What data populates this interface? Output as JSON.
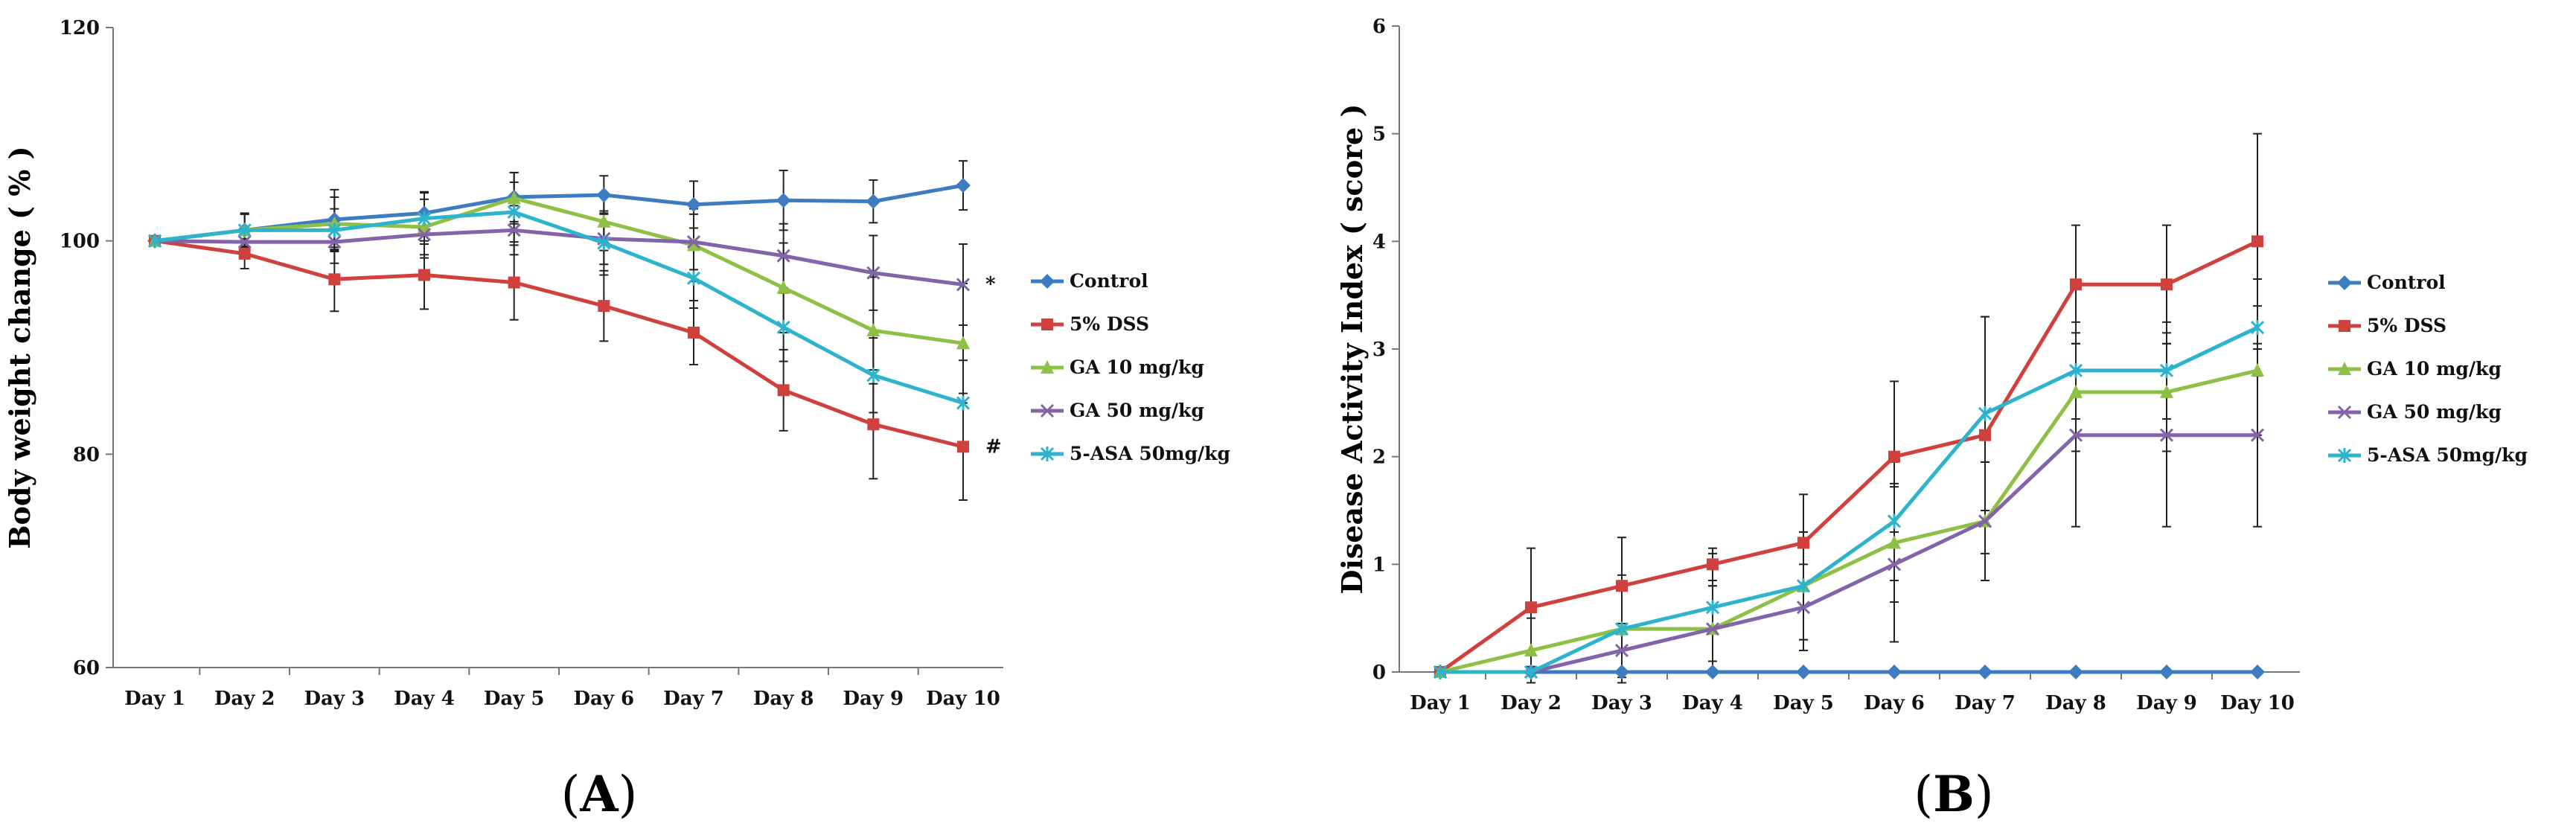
{
  "chart_data": [
    {
      "type": "line",
      "panel": "A",
      "panel_label": "A",
      "title": "",
      "xlabel": "",
      "ylabel": "Body weight change ( % )",
      "ylim": [
        60,
        120
      ],
      "yticks": [
        60,
        80,
        100,
        120
      ],
      "categories": [
        "Day 1",
        "Day 2",
        "Day 3",
        "Day 4",
        "Day 5",
        "Day 6",
        "Day 7",
        "Day 8",
        "Day 9",
        "Day 10"
      ],
      "legend_position": "right",
      "series": [
        {
          "name": "Control",
          "color": "#3e7cc2",
          "marker": "diamond",
          "values": [
            100,
            101,
            102,
            102.6,
            104.1,
            104.3,
            103.4,
            103.8,
            103.7,
            105.2
          ],
          "errors": [
            0,
            1.6,
            2.8,
            2.0,
            2.3,
            1.8,
            2.2,
            2.8,
            2.0,
            2.3
          ]
        },
        {
          "name": "5% DSS",
          "color": "#d0413d",
          "marker": "square",
          "values": [
            100,
            98.8,
            96.4,
            96.8,
            96.1,
            93.9,
            91.4,
            86.0,
            82.8,
            80.7
          ],
          "errors": [
            0,
            1.4,
            3.0,
            3.2,
            3.5,
            3.3,
            3.0,
            3.8,
            5.1,
            5.0
          ]
        },
        {
          "name": "GA 10 mg/kg",
          "color": "#8dc044",
          "marker": "triangle",
          "values": [
            100,
            101.0,
            101.6,
            101.3,
            104.0,
            101.8,
            99.6,
            95.6,
            91.6,
            90.4
          ],
          "errors": [
            0,
            1.5,
            2.5,
            2.6,
            2.4,
            2.7,
            3.4,
            4.2,
            5.0,
            5.6
          ]
        },
        {
          "name": "GA 50 mg/kg",
          "color": "#8364a8",
          "marker": "x",
          "values": [
            100,
            99.9,
            99.9,
            100.6,
            101.0,
            100.2,
            99.9,
            98.6,
            97.0,
            95.9
          ],
          "errors": [
            0,
            1.0,
            2.0,
            2.2,
            2.3,
            2.4,
            2.6,
            3.0,
            3.5,
            3.8
          ]
        },
        {
          "name": "5-ASA 50mg/kg",
          "color": "#2eb3cc",
          "marker": "star",
          "values": [
            100,
            101.0,
            101.0,
            102.1,
            102.7,
            99.8,
            96.5,
            91.9,
            87.4,
            84.8
          ],
          "errors": [
            0,
            1.5,
            2.0,
            2.4,
            2.8,
            3.0,
            2.8,
            3.2,
            3.5,
            4.0
          ]
        }
      ],
      "annotations": [
        {
          "text": "*",
          "series": "GA 50 mg/kg",
          "day": "Day 10"
        },
        {
          "text": "#",
          "series": "5% DSS",
          "day": "Day 10"
        }
      ]
    },
    {
      "type": "line",
      "panel": "B",
      "panel_label": "B",
      "title": "",
      "xlabel": "",
      "ylabel": "Disease Activity Index ( score )",
      "ylim": [
        0,
        6
      ],
      "yticks": [
        0,
        1,
        2,
        3,
        4,
        5,
        6
      ],
      "categories": [
        "Day 1",
        "Day 2",
        "Day 3",
        "Day 4",
        "Day 5",
        "Day 6",
        "Day 7",
        "Day 8",
        "Day 9",
        "Day 10"
      ],
      "legend_position": "right",
      "series": [
        {
          "name": "Control",
          "color": "#3e7cc2",
          "marker": "diamond",
          "values": [
            0,
            0,
            0,
            0,
            0,
            0,
            0,
            0,
            0,
            0
          ],
          "errors": [
            0,
            0,
            0,
            0,
            0,
            0,
            0,
            0,
            0,
            0
          ]
        },
        {
          "name": "5% DSS",
          "color": "#d0413d",
          "marker": "square",
          "values": [
            0,
            0.6,
            0.8,
            1.0,
            1.2,
            2.0,
            2.2,
            3.6,
            3.6,
            4.0
          ],
          "errors": [
            0,
            0.55,
            0.45,
            0.15,
            0.45,
            0.7,
            1.1,
            0.55,
            0.55,
            1.0
          ]
        },
        {
          "name": "GA 10 mg/kg",
          "color": "#8dc044",
          "marker": "triangle",
          "values": [
            0,
            0.2,
            0.4,
            0.4,
            0.8,
            1.2,
            1.4,
            2.6,
            2.6,
            2.8
          ],
          "errors": [
            0,
            0.3,
            0.4,
            0.4,
            0.5,
            0.55,
            0.55,
            0.55,
            0.55,
            0.6
          ]
        },
        {
          "name": "GA 50 mg/kg",
          "color": "#8364a8",
          "marker": "x",
          "values": [
            0,
            0,
            0.2,
            0.4,
            0.6,
            1.0,
            1.4,
            2.2,
            2.2,
            2.2
          ],
          "errors": [
            0,
            0,
            0.25,
            0.4,
            0.4,
            0.72,
            0.55,
            0.85,
            0.85,
            0.85
          ]
        },
        {
          "name": "5-ASA 50mg/kg",
          "color": "#2eb3cc",
          "marker": "star",
          "values": [
            0,
            0,
            0.4,
            0.6,
            0.8,
            1.4,
            2.4,
            2.8,
            2.8,
            3.2
          ],
          "errors": [
            0,
            0,
            0.5,
            0.5,
            0.5,
            0.55,
            0.9,
            0.45,
            0.45,
            0.45
          ]
        }
      ]
    }
  ]
}
